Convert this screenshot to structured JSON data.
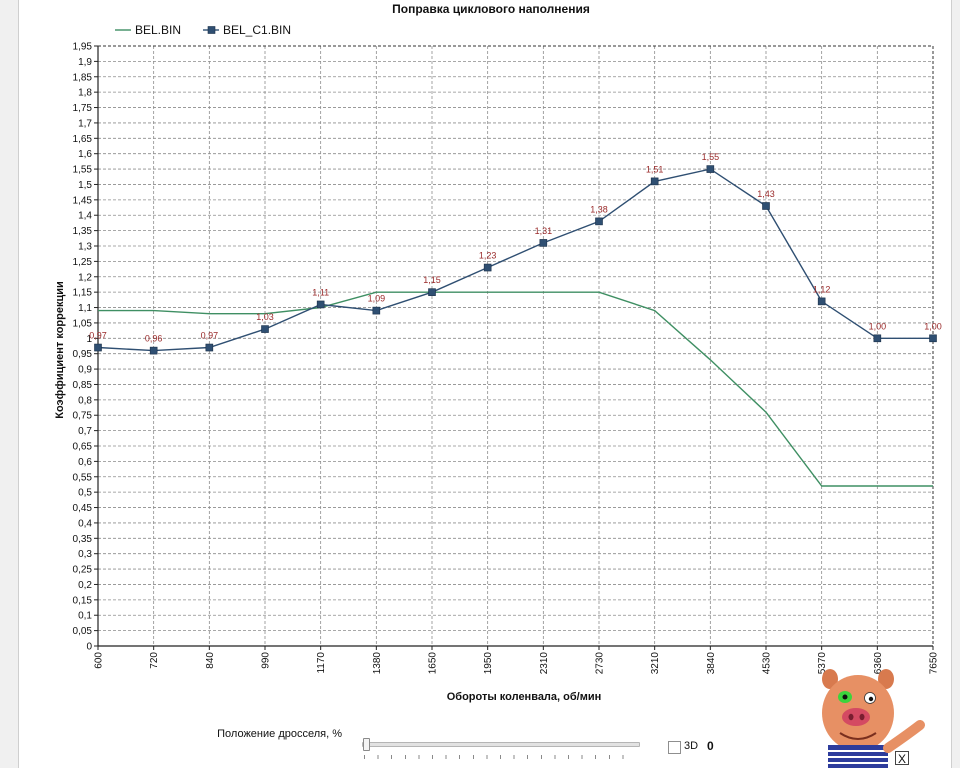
{
  "chart_data": {
    "type": "line",
    "title": "Поправка циклового наполнения",
    "xlabel": "Обороты коленвала, об/мин",
    "ylabel": "Коэффициент коррекции",
    "categories": [
      "600",
      "720",
      "840",
      "990",
      "1170",
      "1380",
      "1650",
      "1950",
      "2310",
      "2730",
      "3210",
      "3840",
      "4530",
      "5370",
      "6360",
      "7650"
    ],
    "ylim": [
      0,
      1.95
    ],
    "yticks": [
      "0",
      "0,05",
      "0,1",
      "0,15",
      "0,2",
      "0,25",
      "0,3",
      "0,35",
      "0,4",
      "0,45",
      "0,5",
      "0,55",
      "0,6",
      "0,65",
      "0,7",
      "0,75",
      "0,8",
      "0,85",
      "0,9",
      "0,95",
      "1",
      "1,05",
      "1,1",
      "1,15",
      "1,2",
      "1,25",
      "1,3",
      "1,35",
      "1,4",
      "1,45",
      "1,5",
      "1,55",
      "1,6",
      "1,65",
      "1,7",
      "1,75",
      "1,8",
      "1,85",
      "1,9",
      "1,95"
    ],
    "grid": true,
    "legend_position": "top-left",
    "series": [
      {
        "name": "BEL.BIN",
        "color": "#3f8f63",
        "marker": "none",
        "values": [
          1.09,
          1.09,
          1.08,
          1.08,
          1.1,
          1.15,
          1.15,
          1.15,
          1.15,
          1.15,
          1.09,
          0.93,
          0.76,
          0.52,
          0.52,
          0.52
        ]
      },
      {
        "name": "BEL_C1.BIN",
        "color": "#2f4f72",
        "marker": "square",
        "values": [
          0.97,
          0.96,
          0.97,
          1.03,
          1.11,
          1.09,
          1.15,
          1.23,
          1.31,
          1.38,
          1.51,
          1.55,
          1.43,
          1.12,
          1.0,
          1.0
        ],
        "labels": [
          "0,97",
          "0,96",
          "0,97",
          "1,03",
          "1,11",
          "1,09",
          "1,15",
          "1,23",
          "1,31",
          "1,38",
          "1,51",
          "1,55",
          "1,43",
          "1,12",
          "1,00",
          "1,00"
        ]
      }
    ]
  },
  "controls": {
    "throttle_label": "Положение дросселя, %",
    "throttle_value": 0,
    "checkbox_3d_label": "3D",
    "checkbox_3d_checked": false,
    "value_display": "0"
  },
  "mascot": {
    "icon": "pig-mascot-icon"
  },
  "close_button": {
    "label": "X"
  }
}
